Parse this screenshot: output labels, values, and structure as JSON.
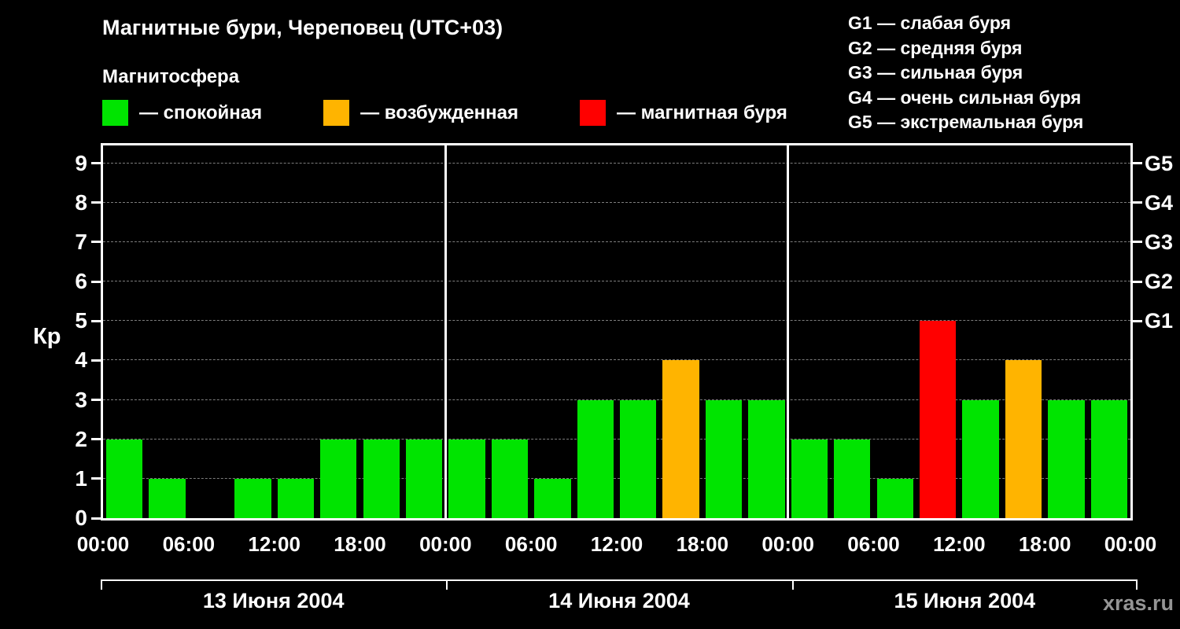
{
  "title": "Магнитные бури, Череповец (UTC+03)",
  "subtitle": "Магнитосфера",
  "legend": {
    "items": [
      {
        "key": "quiet",
        "label": "— спокойная",
        "color": "#00e400"
      },
      {
        "key": "excited",
        "label": "— возбужденная",
        "color": "#ffb400"
      },
      {
        "key": "storm",
        "label": "— магнитная буря",
        "color": "#ff0000"
      }
    ]
  },
  "g_scale_legend": {
    "items": [
      "G1 — слабая буря",
      "G2 — средняя буря",
      "G3 — сильная буря",
      "G4 — очень сильная буря",
      "G5 — экстремальная буря"
    ]
  },
  "watermark": "xras.ru",
  "chart_data": {
    "type": "bar",
    "title": "Магнитные бури, Череповец (UTC+03)",
    "ylabel": "Кр",
    "ylim": [
      0,
      9.45
    ],
    "yticks": [
      0,
      1,
      2,
      3,
      4,
      5,
      6,
      7,
      8,
      9
    ],
    "right_axis": [
      {
        "label": "G1",
        "value": 5
      },
      {
        "label": "G2",
        "value": 6
      },
      {
        "label": "G3",
        "value": 7
      },
      {
        "label": "G4",
        "value": 8
      },
      {
        "label": "G5",
        "value": 9
      }
    ],
    "x_tick_labels": [
      "00:00",
      "06:00",
      "12:00",
      "18:00",
      "00:00",
      "06:00",
      "12:00",
      "18:00",
      "00:00",
      "06:00",
      "12:00",
      "18:00",
      "00:00"
    ],
    "bar_interval_hours": 3,
    "days": [
      {
        "date": "13 Июня 2004",
        "values": [
          2,
          1,
          0,
          1,
          1,
          2,
          2,
          2
        ]
      },
      {
        "date": "14 Июня 2004",
        "values": [
          2,
          2,
          1,
          3,
          3,
          4,
          3,
          3
        ]
      },
      {
        "date": "15 Июня 2004",
        "values": [
          2,
          2,
          1,
          5,
          3,
          4,
          3,
          3
        ]
      }
    ],
    "colors": {
      "quiet": "#00e400",
      "excited": "#ffb400",
      "storm": "#ff0000"
    },
    "color_rule": {
      "quiet_max": 3,
      "excited_value": 4,
      "storm_min": 5
    },
    "grid": "dashed horizontal lines at integer Kp 1-9",
    "legend_position": "top"
  }
}
